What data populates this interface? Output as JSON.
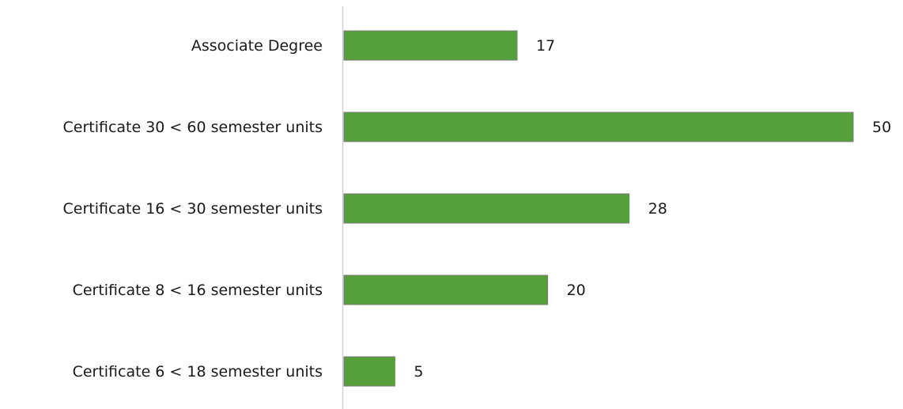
{
  "chart_data": {
    "type": "bar",
    "orientation": "horizontal",
    "categories": [
      "Associate Degree",
      "Certificate 30 < 60 semester units",
      "Certificate 16 < 30 semester units",
      "Certificate 8 < 16 semester units",
      "Certificate 6 < 18 semester units"
    ],
    "values": [
      17,
      50,
      28,
      20,
      5
    ],
    "color": "#56a03c"
  }
}
